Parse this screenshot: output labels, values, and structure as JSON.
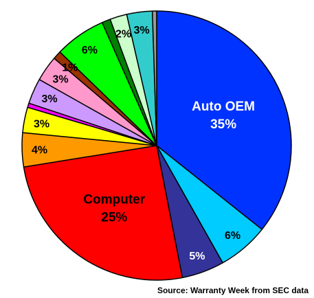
{
  "chart_data": {
    "type": "pie",
    "slices": [
      {
        "label": "Auto OEM",
        "value_label": "35%",
        "value": 35,
        "color": "#0033ff",
        "text_color": "#ffffff"
      },
      {
        "label": "",
        "value_label": "6%",
        "value": 6,
        "color": "#00ccff",
        "text_color": "#000000"
      },
      {
        "label": "",
        "value_label": "5%",
        "value": 5,
        "color": "#333399",
        "text_color": "#ffffff"
      },
      {
        "label": "Computer",
        "value_label": "25%",
        "value": 25,
        "color": "#ff0000",
        "text_color": "#000000"
      },
      {
        "label": "",
        "value_label": "4%",
        "value": 4,
        "color": "#ff9900",
        "text_color": "#000000"
      },
      {
        "label": "",
        "value_label": "3%",
        "value": 3,
        "color": "#ffff00",
        "text_color": "#000000"
      },
      {
        "label": "",
        "value_label": "",
        "value": 0.5,
        "color": "#ff00ff",
        "text_color": "#000000"
      },
      {
        "label": "",
        "value_label": "3%",
        "value": 3,
        "color": "#cc99ff",
        "text_color": "#000000"
      },
      {
        "label": "",
        "value_label": "3%",
        "value": 3,
        "color": "#ff99cc",
        "text_color": "#000000"
      },
      {
        "label": "",
        "value_label": "1%",
        "value": 1,
        "color": "#993300",
        "text_color": "#000000"
      },
      {
        "label": "",
        "value_label": "6%",
        "value": 6,
        "color": "#00ff00",
        "text_color": "#000000"
      },
      {
        "label": "",
        "value_label": "",
        "value": 1,
        "color": "#008000",
        "text_color": "#000000"
      },
      {
        "label": "",
        "value_label": "2%",
        "value": 2,
        "color": "#ccffcc",
        "text_color": "#000000"
      },
      {
        "label": "",
        "value_label": "3%",
        "value": 3,
        "color": "#33cccc",
        "text_color": "#000000"
      },
      {
        "label": "",
        "value_label": "",
        "value": 0.5,
        "color": "#999999",
        "text_color": "#000000"
      }
    ],
    "source": "Source: Warranty Week from SEC data"
  }
}
